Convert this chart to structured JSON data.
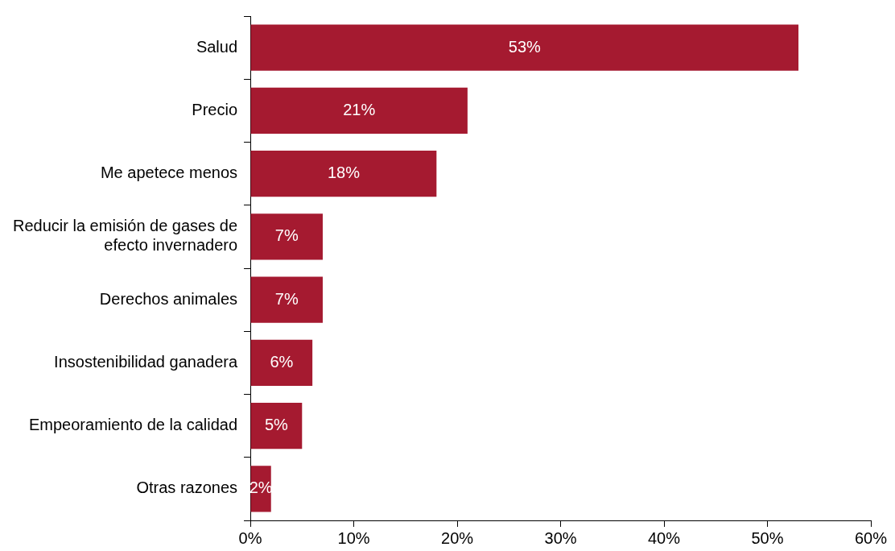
{
  "chart_data": {
    "type": "bar",
    "orientation": "horizontal",
    "categories": [
      "Salud",
      "Precio",
      "Me apetece menos",
      "Reducir la emisión de gases de efecto invernadero",
      "Derechos animales",
      "Insostenibilidad ganadera",
      "Empeoramiento de la calidad",
      "Otras razones"
    ],
    "values": [
      53,
      21,
      18,
      7,
      7,
      6,
      5,
      2
    ],
    "color": "#a51a30",
    "xlim": [
      0,
      60
    ],
    "xticks": [
      {
        "value": 0,
        "label": "0%"
      },
      {
        "value": 10,
        "label": "10%"
      },
      {
        "value": 20,
        "label": "20%"
      },
      {
        "value": 30,
        "label": "30%"
      },
      {
        "value": 40,
        "label": "40%"
      },
      {
        "value": 50,
        "label": "50%"
      },
      {
        "value": 60,
        "label": "60%"
      }
    ],
    "value_labels": [
      "53%",
      "21%",
      "18%",
      "7%",
      "7%",
      "6%",
      "5%",
      "2%"
    ],
    "grid": false,
    "legend": false
  }
}
